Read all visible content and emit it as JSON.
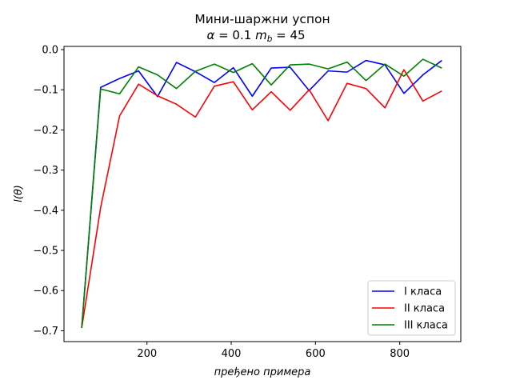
{
  "chart_data": {
    "type": "line",
    "title_line1": "Мини-шаржни успон",
    "title_line2": "α = 0.1 m_b = 45",
    "title_alpha_symbol": "α",
    "title_alpha_value": " = 0.1 ",
    "title_m": "m",
    "title_sub": "b",
    "title_m_value": " = 45",
    "xlabel": "пређено примера",
    "ylabel": "l(θ)",
    "xlim": [
      3,
      945
    ],
    "ylim": [
      -0.727,
      0.008
    ],
    "xticks": [
      200,
      400,
      600,
      800
    ],
    "yticks": [
      0.0,
      -0.1,
      -0.2,
      -0.3,
      -0.4,
      -0.5,
      -0.6,
      -0.7
    ],
    "ytick_labels": [
      "0.0",
      "−0.1",
      "−0.2",
      "−0.3",
      "−0.4",
      "−0.5",
      "−0.6",
      "−0.7"
    ],
    "legend_position": "lower-right",
    "x": [
      45,
      90,
      135,
      180,
      225,
      270,
      315,
      360,
      405,
      450,
      495,
      540,
      585,
      630,
      675,
      720,
      765,
      810,
      855,
      900
    ],
    "series": [
      {
        "name": "I класа",
        "color": "#0000ff",
        "values": [
          -0.693,
          -0.094,
          -0.072,
          -0.053,
          -0.117,
          -0.032,
          -0.055,
          -0.082,
          -0.045,
          -0.116,
          -0.046,
          -0.044,
          -0.102,
          -0.053,
          -0.056,
          -0.027,
          -0.038,
          -0.109,
          -0.063,
          -0.027
        ]
      },
      {
        "name": "II класа",
        "color": "#ff0000",
        "values": [
          -0.693,
          -0.393,
          -0.165,
          -0.086,
          -0.115,
          -0.136,
          -0.168,
          -0.091,
          -0.08,
          -0.15,
          -0.105,
          -0.151,
          -0.1,
          -0.177,
          -0.084,
          -0.097,
          -0.145,
          -0.05,
          -0.128,
          -0.103
        ]
      },
      {
        "name": "III класа",
        "color": "#008000",
        "values": [
          -0.693,
          -0.098,
          -0.11,
          -0.043,
          -0.063,
          -0.097,
          -0.054,
          -0.036,
          -0.057,
          -0.035,
          -0.088,
          -0.038,
          -0.036,
          -0.048,
          -0.031,
          -0.077,
          -0.036,
          -0.066,
          -0.024,
          -0.046
        ]
      }
    ]
  }
}
